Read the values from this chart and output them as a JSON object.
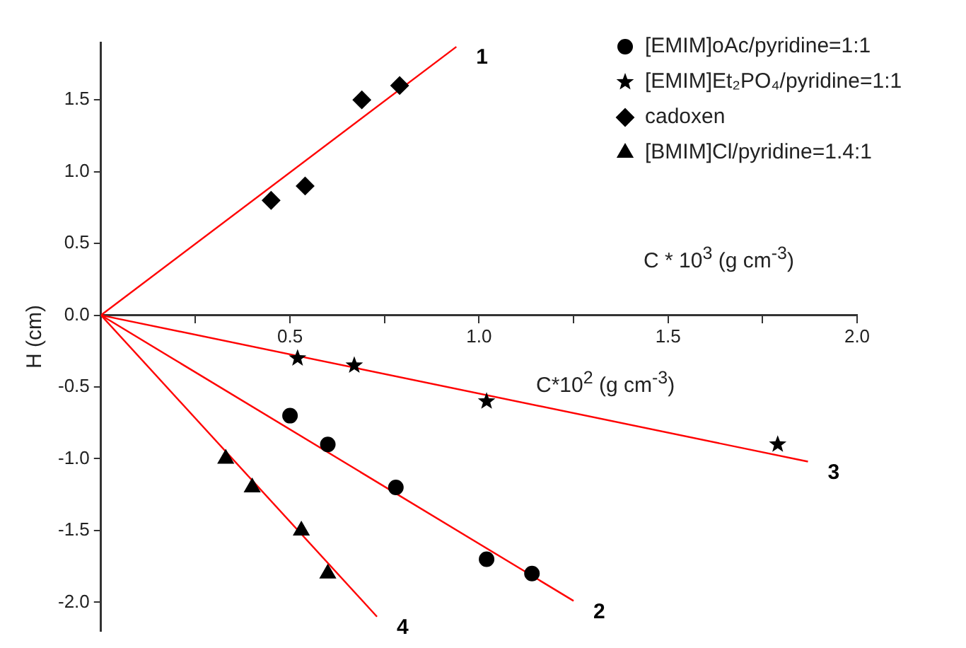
{
  "chart_data": {
    "type": "scatter",
    "xlabel": "C*10$^{2}$ (g cm$^{-3}$)",
    "ylabel": "H (cm)",
    "annotations": [
      "C * 10$^{3}$ (g cm$^{-3}$)",
      {
        "text": "1",
        "x": 0.94,
        "y": 1.87
      },
      {
        "text": "2",
        "x": 1.25,
        "y": -1.99
      },
      {
        "text": "3",
        "x": 1.87,
        "y": -1.02
      },
      {
        "text": "4",
        "x": 0.73,
        "y": -2.1
      }
    ],
    "xlim": [
      0,
      2.0
    ],
    "ylim": [
      -2.2,
      1.9
    ],
    "xticks": [
      {
        "value": 0,
        "label": null
      },
      {
        "value": 0.25,
        "label": null
      },
      0.5,
      {
        "value": 0.75,
        "label": null
      },
      {
        "value": 1,
        "label": "1.0"
      },
      {
        "value": 1.25,
        "label": null
      },
      1.5,
      {
        "value": 1.75,
        "label": null
      },
      {
        "value": 2,
        "label": "2.0"
      }
    ],
    "yticks": [
      {
        "value": -2,
        "label": "-2.0"
      },
      -1.5,
      {
        "value": -1,
        "label": "-1.0"
      },
      -0.5,
      {
        "value": 0,
        "label": "0.0"
      },
      0.5,
      {
        "value": 1,
        "label": "1.0"
      },
      1.5
    ],
    "legend": "top right",
    "series": [
      {
        "name": "[EMIM]oAc/pyridine=1:1",
        "color": "#000000",
        "marker": "circle",
        "x": [
          0.5,
          0.6,
          0.78,
          1.02,
          1.14
        ],
        "values": [
          -0.7,
          -0.9,
          -1.2,
          -1.7,
          -1.8
        ]
      },
      {
        "name": "[EMIM]Et₂PO₄/pyridine=1:1",
        "color": "#000000",
        "marker": "star",
        "x": [
          0.52,
          0.67,
          1.02,
          1.79
        ],
        "values": [
          -0.3,
          -0.35,
          -0.6,
          -0.9
        ]
      },
      {
        "name": "cadoxen",
        "color": "#000000",
        "marker": "diamond",
        "x": [
          0.45,
          0.54,
          0.69,
          0.79
        ],
        "values": [
          0.8,
          0.9,
          1.5,
          1.6
        ]
      },
      {
        "name": "[BMIM]Cl/pyridine=1.4:1",
        "color": "#000000",
        "marker": "triangle",
        "x": [
          0.33,
          0.4,
          0.53,
          0.6
        ],
        "values": [
          -1.0,
          -1.2,
          -1.5,
          -1.8
        ]
      },
      {
        "type": "line",
        "color": "#ff0000",
        "marker": "none",
        "x": [
          0,
          0.94
        ],
        "values": [
          0,
          1.87
        ]
      },
      {
        "type": "line",
        "color": "#ff0000",
        "marker": "none",
        "x": [
          0,
          1.25
        ],
        "values": [
          0,
          -1.99
        ]
      },
      {
        "type": "line",
        "color": "#ff0000",
        "marker": "none",
        "x": [
          0,
          1.87
        ],
        "values": [
          0,
          -1.02
        ]
      },
      {
        "type": "line",
        "color": "#ff0000",
        "marker": "none",
        "x": [
          0,
          0.73
        ],
        "values": [
          0,
          -2.1
        ]
      }
    ]
  }
}
